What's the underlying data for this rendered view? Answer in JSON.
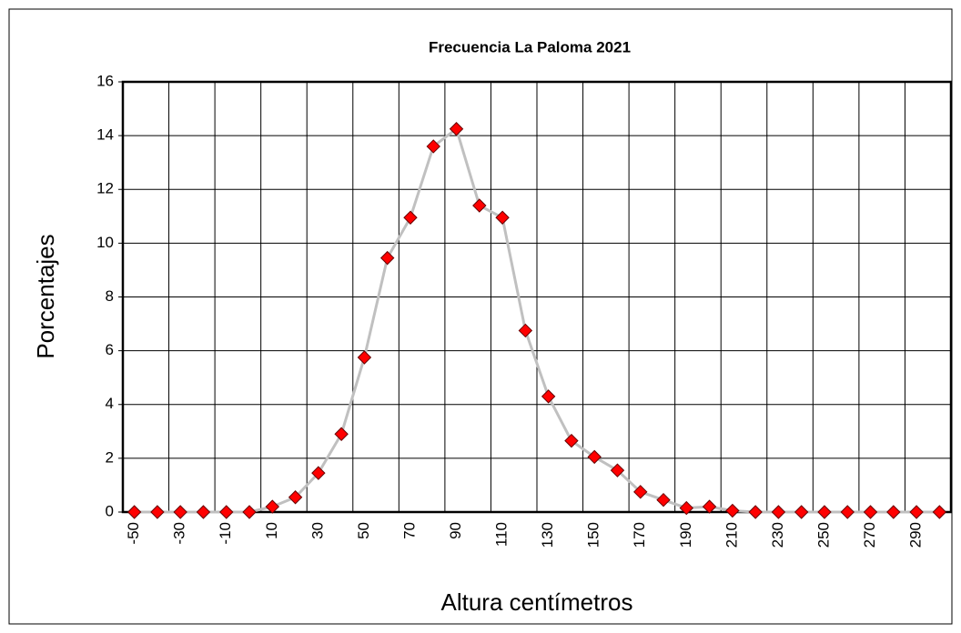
{
  "chart_data": {
    "type": "line",
    "title": "Frecuencia La Paloma 2021",
    "x_label": "Altura  centímetros",
    "y_label": "Porcentajes",
    "categories": [
      -50,
      null,
      -30,
      null,
      -10,
      null,
      10,
      null,
      30,
      null,
      50,
      null,
      70,
      null,
      90,
      null,
      110,
      null,
      130,
      null,
      150,
      null,
      170,
      null,
      190,
      null,
      210,
      null,
      230,
      null,
      250,
      null,
      270,
      null,
      290,
      null
    ],
    "series": [
      {
        "name": "Porcentajes",
        "color": "#c0c0c0",
        "marker_color": "#ff0000",
        "values": [
          0,
          0,
          0,
          0,
          0,
          0,
          0.2,
          0.55,
          1.45,
          2.9,
          5.75,
          9.45,
          10.95,
          13.6,
          14.25,
          11.4,
          10.95,
          6.75,
          4.3,
          2.65,
          2.05,
          1.55,
          0.75,
          0.45,
          0.15,
          0.2,
          0.05,
          0,
          0,
          0,
          0,
          0,
          0,
          0,
          0,
          0
        ]
      }
    ],
    "ylim": [
      0,
      16
    ],
    "yticks": [
      0,
      2,
      4,
      6,
      8,
      10,
      12,
      14,
      16
    ],
    "grid": true
  }
}
